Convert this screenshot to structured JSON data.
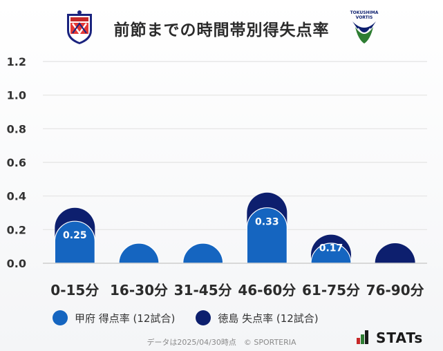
{
  "header": {
    "title": "前節までの時間帯別得失点率",
    "left_logo": "kofu-crest",
    "right_logo": "tokushima-vortis-crest",
    "right_logo_text": [
      "TOKUSHIMA",
      "VORTIS"
    ]
  },
  "colors": {
    "kofu": "#1565c0",
    "tokushima": "#0d1f6e",
    "grid": "#e3e3e3"
  },
  "chart_data": {
    "type": "bar",
    "title": "前節までの時間帯別得失点率",
    "categories": [
      "0-15分",
      "16-30分",
      "31-45分",
      "46-60分",
      "61-75分",
      "76-90分"
    ],
    "series": [
      {
        "name": "甲府 得点率 (12試合)",
        "values": [
          0.25,
          0,
          0,
          0.33,
          0.08,
          0
        ]
      },
      {
        "name": "徳島 失点率 (12試合)",
        "values": [
          0.33,
          0,
          0,
          0.42,
          0.17,
          0
        ]
      }
    ],
    "data_labels": [
      "0.25",
      "",
      "",
      "0.33",
      "0.17",
      ""
    ],
    "ylim": [
      0,
      1.2
    ],
    "yticks": [
      "0.0",
      "0.2",
      "0.4",
      "0.6",
      "0.8",
      "1.0",
      "1.2"
    ],
    "grid": true,
    "legend_position": "bottom-left"
  },
  "legend": {
    "items": [
      "甲府 得点率 (12試合)",
      "徳島 失点率 (12試合)"
    ]
  },
  "footer": {
    "note": "データは2025/04/30時点　© SPORTERIA",
    "brand": "STATs"
  }
}
